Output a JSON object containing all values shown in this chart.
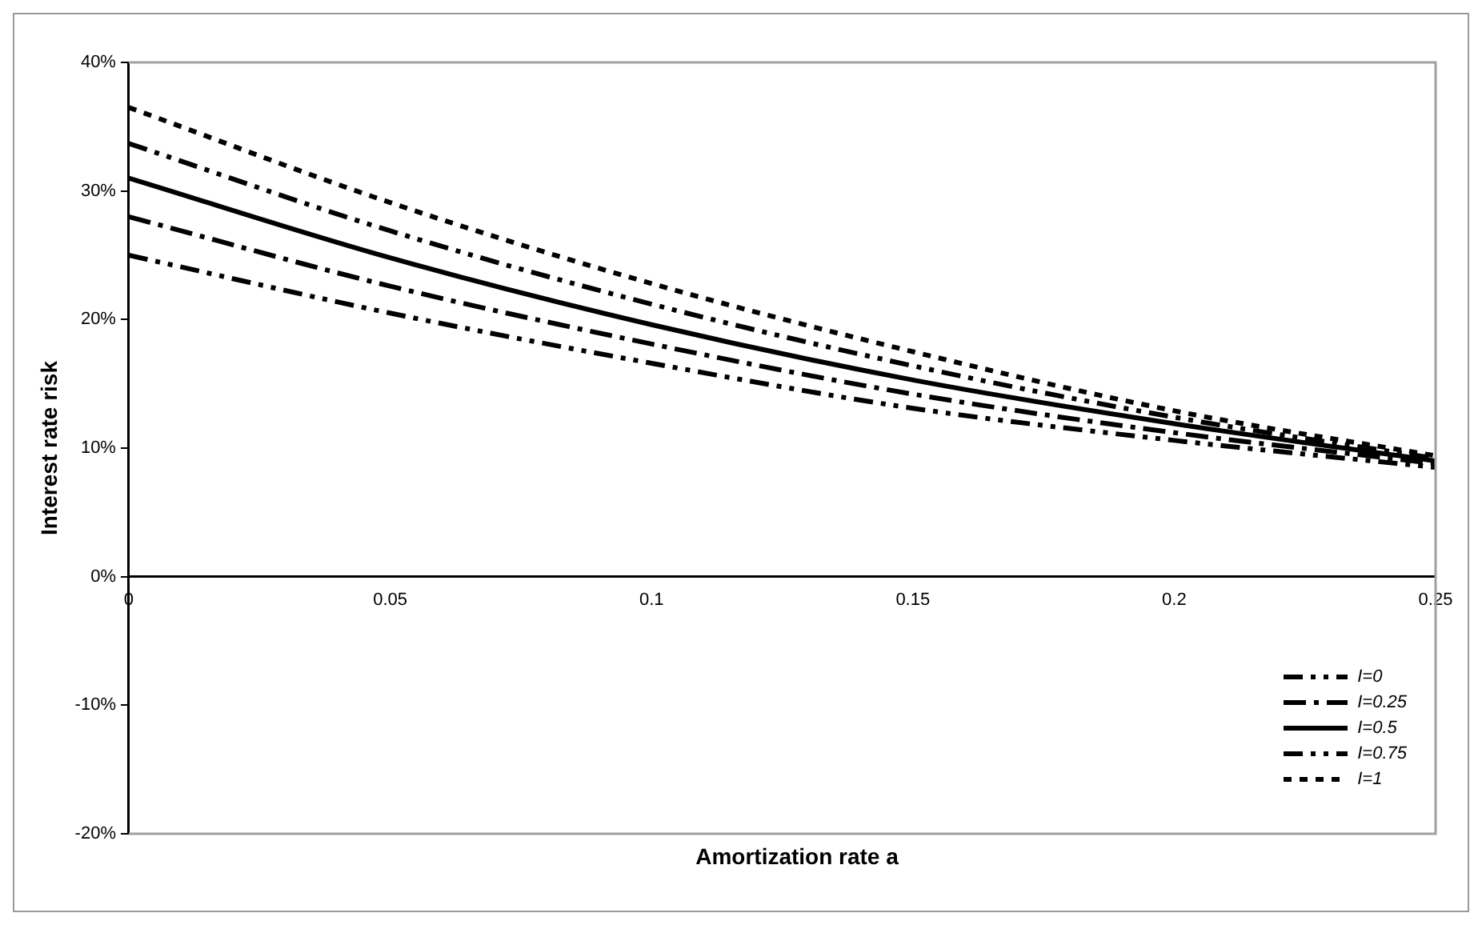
{
  "chart_data": {
    "type": "line",
    "xlabel": "Amortization rate a",
    "ylabel": "Interest rate risk",
    "x": [
      0,
      0.05,
      0.1,
      0.15,
      0.2,
      0.25
    ],
    "series": [
      {
        "name": "I=0",
        "color": "#000000",
        "line_style": "dashed",
        "values": [
          25,
          20.5,
          16.6,
          13.1,
          10.6,
          8.5
        ]
      },
      {
        "name": "I=0.25",
        "color": "#000000",
        "line_style": "dashed",
        "values": [
          28,
          22.6,
          18.1,
          14.2,
          11.2,
          8.8
        ]
      },
      {
        "name": "I=0.5",
        "color": "#000000",
        "line_style": "solid",
        "values": [
          31,
          24.8,
          19.6,
          15.3,
          11.9,
          9.0
        ]
      },
      {
        "name": "I=0.75",
        "color": "#000000",
        "line_style": "dashed",
        "values": [
          33.7,
          26.9,
          21.2,
          16.4,
          12.4,
          9.2
        ]
      },
      {
        "name": "I=1",
        "color": "#000000",
        "line_style": "dotted",
        "values": [
          36.5,
          29.1,
          22.8,
          17.5,
          12.9,
          9.4
        ]
      }
    ],
    "xlim": [
      0,
      0.25
    ],
    "xticks": [
      0,
      0.05,
      0.1,
      0.15,
      0.2,
      0.25
    ],
    "ylim": [
      -20,
      40
    ],
    "yticks": [
      {
        "value": -20,
        "label": "-20%"
      },
      {
        "value": -10,
        "label": "-10%"
      },
      {
        "value": 0,
        "label": "0%"
      },
      {
        "value": 10,
        "label": "10%"
      },
      {
        "value": 20,
        "label": "20%"
      },
      {
        "value": 30,
        "label": "30%"
      },
      {
        "value": 40,
        "label": "40%"
      }
    ],
    "grid": false,
    "legend": "bottom right",
    "marker": "none"
  }
}
